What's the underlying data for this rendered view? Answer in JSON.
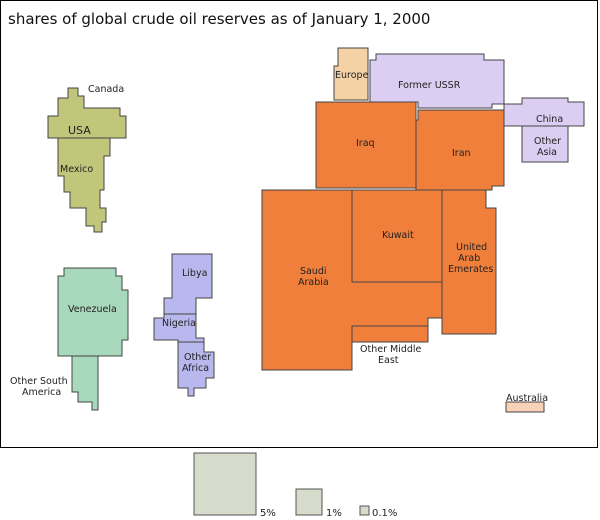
{
  "title": "shares of global crude oil reserves as of January 1, 2000",
  "colors": {
    "north_america": "#c2c67a",
    "south_america": "#a9d9bc",
    "africa": "#b8b8ee",
    "middle_east": "#f07f3c",
    "europe": "#f5d2a6",
    "former_ussr_asia": "#dccdf2",
    "australia": "#f8d2b8",
    "legend": "#d6dccb"
  },
  "regions": [
    {
      "id": "canada",
      "label": "Canada",
      "group": "north_america"
    },
    {
      "id": "usa",
      "label": "USA",
      "group": "north_america"
    },
    {
      "id": "mexico",
      "label": "Mexico",
      "group": "north_america"
    },
    {
      "id": "venezuela",
      "label": "Venezuela",
      "group": "south_america"
    },
    {
      "id": "other_south_america",
      "label": "Other South America",
      "group": "south_america"
    },
    {
      "id": "libya",
      "label": "Libya",
      "group": "africa"
    },
    {
      "id": "nigeria",
      "label": "Nigeria",
      "group": "africa"
    },
    {
      "id": "other_africa",
      "label": "Other Africa",
      "group": "africa"
    },
    {
      "id": "europe",
      "label": "Europe",
      "group": "europe"
    },
    {
      "id": "former_ussr",
      "label": "Former USSR",
      "group": "former_ussr_asia"
    },
    {
      "id": "china",
      "label": "China",
      "group": "former_ussr_asia"
    },
    {
      "id": "other_asia",
      "label": "Other Asia",
      "group": "former_ussr_asia"
    },
    {
      "id": "iraq",
      "label": "Iraq",
      "group": "middle_east"
    },
    {
      "id": "iran",
      "label": "Iran",
      "group": "middle_east"
    },
    {
      "id": "saudi_arabia",
      "label": "Saudi Arabia",
      "group": "middle_east"
    },
    {
      "id": "kuwait",
      "label": "Kuwait",
      "group": "middle_east"
    },
    {
      "id": "uae",
      "label": "United Arab Emerates",
      "group": "middle_east"
    },
    {
      "id": "other_middle_east",
      "label": "Other Middle East",
      "group": "middle_east"
    },
    {
      "id": "australia",
      "label": "Australia",
      "group": "australia"
    }
  ],
  "legend": [
    {
      "id": "five",
      "label": "5%"
    },
    {
      "id": "one",
      "label": "1%"
    },
    {
      "id": "tenth",
      "label": "0.1%"
    }
  ]
}
